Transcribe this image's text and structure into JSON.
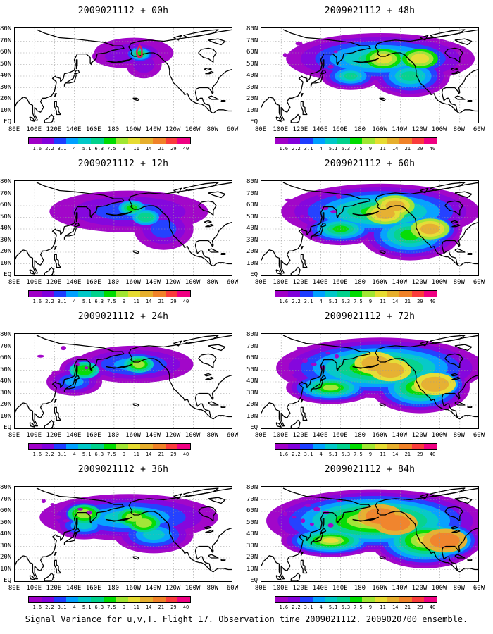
{
  "caption": "Signal Variance for u,v,T. Flight 17. Observation time 2009021112. 2009020700 ensemble.",
  "panels": [
    {
      "title": "2009021112 + 00h",
      "intensity": 0
    },
    {
      "title": "2009021112 + 48h",
      "intensity": 4
    },
    {
      "title": "2009021112 + 12h",
      "intensity": 1
    },
    {
      "title": "2009021112 + 60h",
      "intensity": 5
    },
    {
      "title": "2009021112 + 24h",
      "intensity": 2
    },
    {
      "title": "2009021112 + 72h",
      "intensity": 6
    },
    {
      "title": "2009021112 + 36h",
      "intensity": 3
    },
    {
      "title": "2009021112 + 84h",
      "intensity": 7
    }
  ],
  "lat_labels": [
    "80N",
    "70N",
    "60N",
    "50N",
    "40N",
    "30N",
    "20N",
    "10N",
    "EQ"
  ],
  "lon_labels": [
    "80E",
    "100E",
    "120E",
    "140E",
    "160E",
    "180",
    "160W",
    "140W",
    "120W",
    "100W",
    "80W",
    "60W"
  ],
  "colorbar": {
    "labels": [
      "1.6",
      "2.2",
      "3.1",
      "4",
      "5.1",
      "6.3",
      "7.5",
      "9",
      "11",
      "14",
      "21",
      "29",
      "40"
    ],
    "colors": [
      "#a000c8",
      "#8200dc",
      "#1e3cff",
      "#00a0ff",
      "#00c8c8",
      "#00d28c",
      "#00dc00",
      "#a0e632",
      "#e6dc32",
      "#e6af2d",
      "#f08228",
      "#fa3c3c",
      "#f00082"
    ]
  }
}
